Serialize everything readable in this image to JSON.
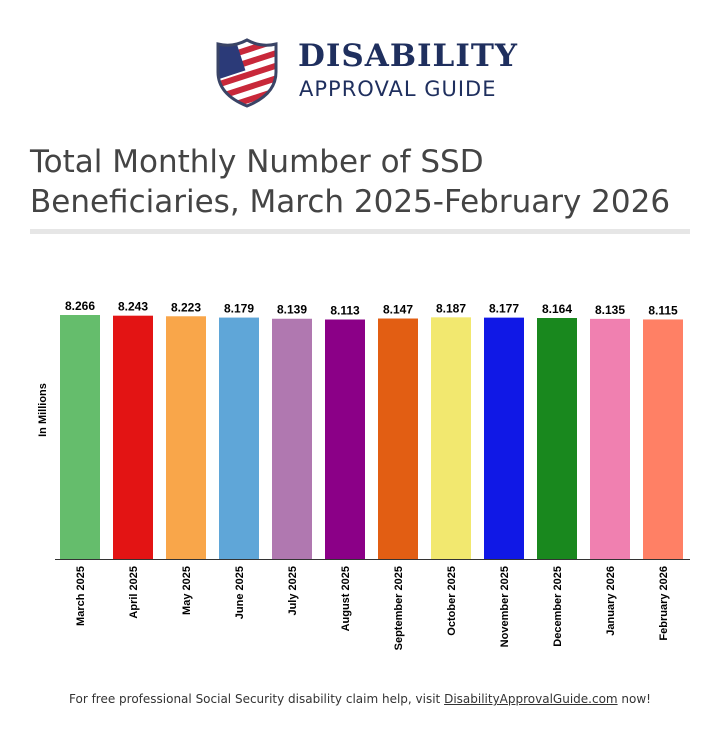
{
  "logo": {
    "line1": "DISABILITY",
    "line2": "APPROVAL GUIDE"
  },
  "title": "Total Monthly Number of SSD Beneficiaries, March 2025-February 2026",
  "chart_data": {
    "type": "bar",
    "ylabel": "In Millions",
    "ylim": [
      0,
      8.266
    ],
    "grid": false,
    "categories": [
      "March 2025",
      "April 2025",
      "May 2025",
      "June 2025",
      "July 2025",
      "August 2025",
      "September 2025",
      "October 2025",
      "November 2025",
      "December 2025",
      "January 2026",
      "February 2026"
    ],
    "values": [
      8.266,
      8.243,
      8.223,
      8.179,
      8.139,
      8.113,
      8.147,
      8.187,
      8.177,
      8.164,
      8.135,
      8.115
    ],
    "colors": [
      "#65bd6c",
      "#e31414",
      "#f9a64a",
      "#5fa6d8",
      "#b078b0",
      "#8b0087",
      "#e25e13",
      "#f2e86f",
      "#1018e6",
      "#19881e",
      "#f080b0",
      "#ff8065"
    ]
  },
  "footer": {
    "prefix": "For free professional Social Security disability claim help, visit ",
    "link": "DisabilityApprovalGuide.com",
    "suffix": " now!"
  }
}
